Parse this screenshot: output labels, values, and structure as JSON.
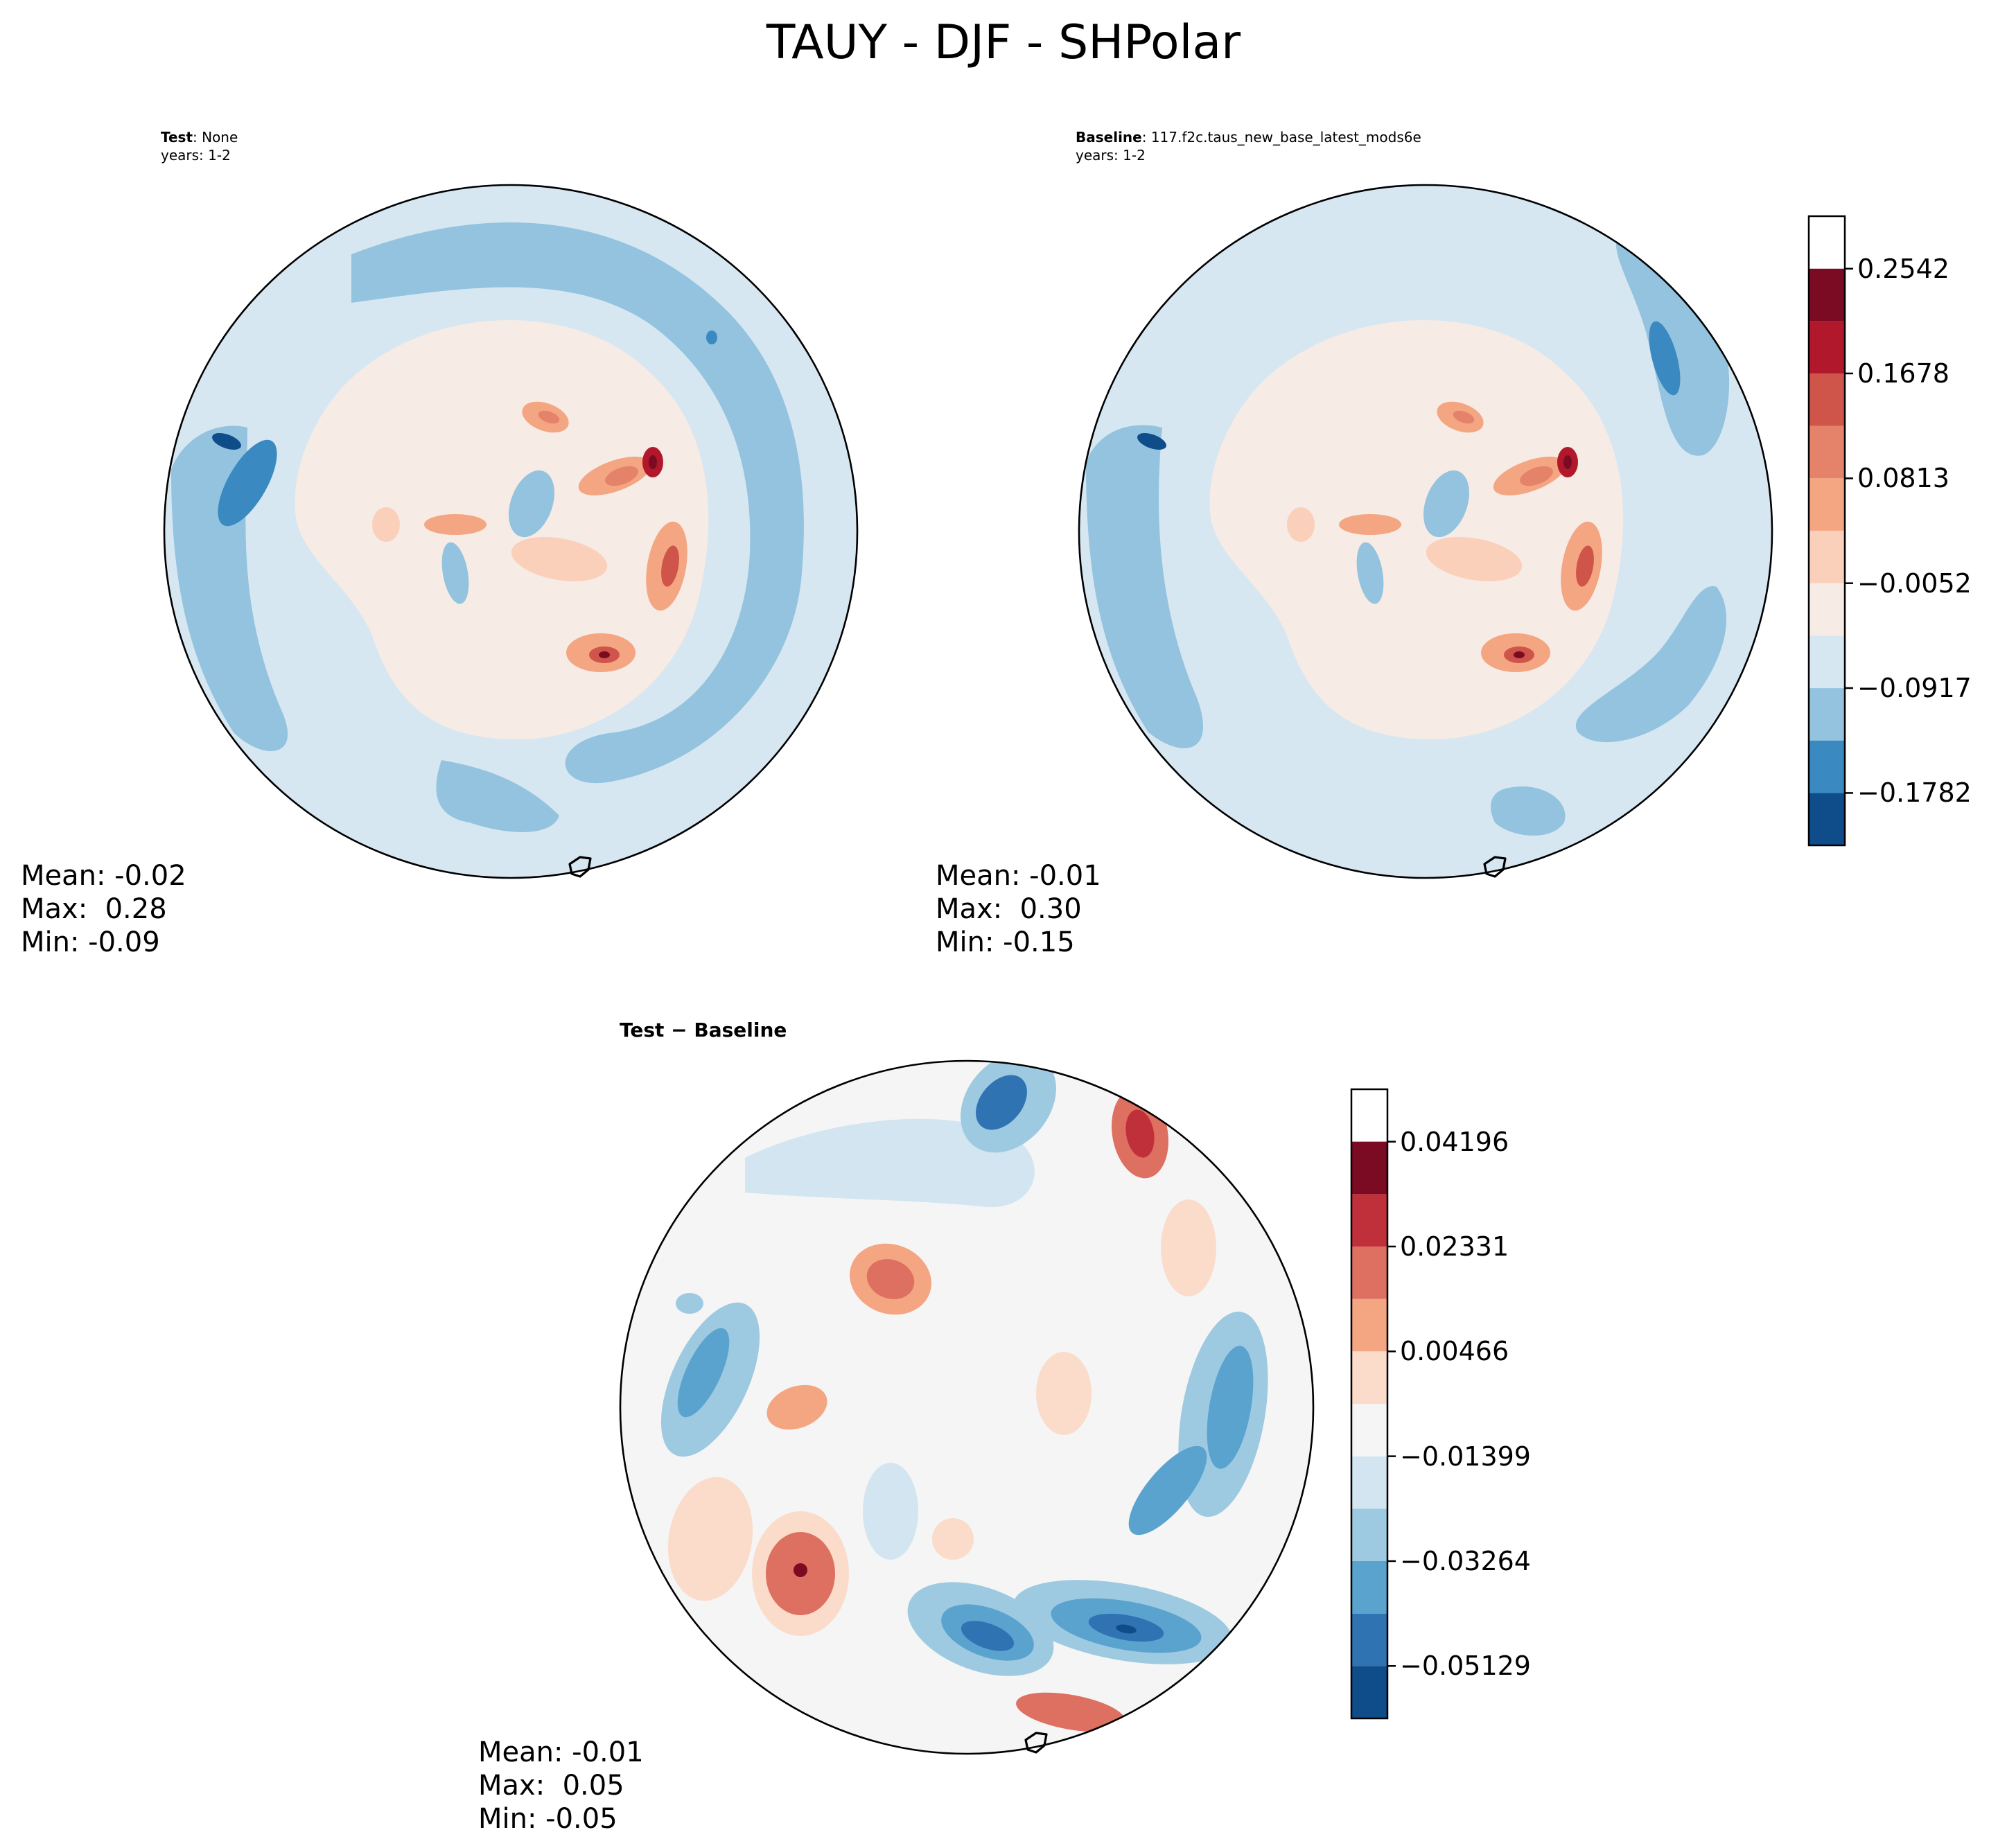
{
  "figure": {
    "title": "TAUY - DJF - SHPolar",
    "colors": {
      "background": "#ffffff",
      "coast": "#000000"
    }
  },
  "chart_data": [
    {
      "type": "heatmap",
      "panel": "test",
      "label_bold": "Test",
      "label_text": ": None",
      "years_text": "years: 1-2",
      "projection": "south-polar-stereographic",
      "stats": {
        "mean": "Mean: -0.02",
        "max": "Max:  0.28",
        "min": "Min: -0.09"
      }
    },
    {
      "type": "heatmap",
      "panel": "baseline",
      "label_bold": "Baseline",
      "label_text": ": 117.f2c.taus_new_base_latest_mods6e",
      "years_text": "years: 1-2",
      "projection": "south-polar-stereographic",
      "stats": {
        "mean": "Mean: -0.01",
        "max": "Max:  0.30",
        "min": "Min: -0.15"
      },
      "colorbar": {
        "levels": [
          -0.2214,
          -0.1782,
          -0.1349,
          -0.0917,
          -0.0484,
          -0.0052,
          0.0381,
          0.0813,
          0.1246,
          0.1678,
          0.211,
          0.2542,
          0.2975
        ],
        "tick_labels": [
          "0.2542",
          "0.1678",
          "0.0813",
          "−0.0052",
          "−0.0917",
          "−0.1782"
        ],
        "tick_values": [
          0.2542,
          0.1678,
          0.0813,
          -0.0052,
          -0.0917,
          -0.1782
        ],
        "colors": [
          "#0f4c8a",
          "#3a89c1",
          "#93c3de",
          "#d7e7f2",
          "#f6ebe5",
          "#fbd0bb",
          "#f4a582",
          "#e4826a",
          "#cf5449",
          "#b2182b",
          "#7a0b23"
        ]
      }
    },
    {
      "type": "heatmap",
      "panel": "difference",
      "label_bold": "Test − Baseline",
      "projection": "south-polar-stereographic",
      "stats": {
        "mean": "Mean: -0.01",
        "max": "Max:  0.05",
        "min": "Min: -0.05"
      },
      "colorbar": {
        "levels": [
          -0.06062,
          -0.05129,
          -0.04197,
          -0.03264,
          -0.02332,
          -0.01399,
          -0.00467,
          0.00466,
          0.01398,
          0.02331,
          0.03263,
          0.04196,
          0.05128
        ],
        "tick_labels": [
          "0.04196",
          "0.02331",
          "0.00466",
          "−0.01399",
          "−0.03264",
          "−0.05129"
        ],
        "tick_values": [
          0.04196,
          0.02331,
          0.00466,
          -0.01399,
          -0.03264,
          -0.05129
        ],
        "colors": [
          "#0f4c8a",
          "#2f73b3",
          "#5ba3cf",
          "#9ecae1",
          "#d2e5f0",
          "#f5f5f5",
          "#fbdccb",
          "#f4a582",
          "#dd7060",
          "#c0303a",
          "#7a0b23"
        ]
      }
    }
  ]
}
